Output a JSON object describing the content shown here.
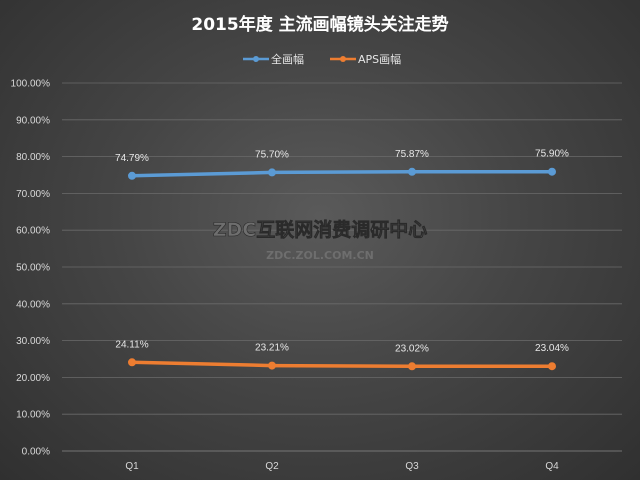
{
  "chart_data": {
    "type": "line",
    "title": "2015年度 主流画幅镜头关注走势",
    "categories": [
      "Q1",
      "Q2",
      "Q3",
      "Q4"
    ],
    "ylim": [
      0,
      100
    ],
    "yticks": [
      "0.00%",
      "10.00%",
      "20.00%",
      "30.00%",
      "40.00%",
      "50.00%",
      "60.00%",
      "70.00%",
      "80.00%",
      "90.00%",
      "100.00%"
    ],
    "grid": true,
    "legend_position": "top",
    "series": [
      {
        "name": "全画幅",
        "color": "#5b9bd5",
        "values": [
          74.79,
          75.7,
          75.87,
          75.9
        ],
        "labels": [
          "74.79%",
          "75.70%",
          "75.87%",
          "75.90%"
        ]
      },
      {
        "name": "APS画幅",
        "color": "#ed7d31",
        "values": [
          24.11,
          23.21,
          23.02,
          23.04
        ],
        "labels": [
          "24.11%",
          "23.21%",
          "23.02%",
          "23.04%"
        ]
      }
    ]
  },
  "watermark": {
    "main": "ZDC互联网消费调研中心",
    "sub": "ZDC.ZOL.COM.CN"
  }
}
